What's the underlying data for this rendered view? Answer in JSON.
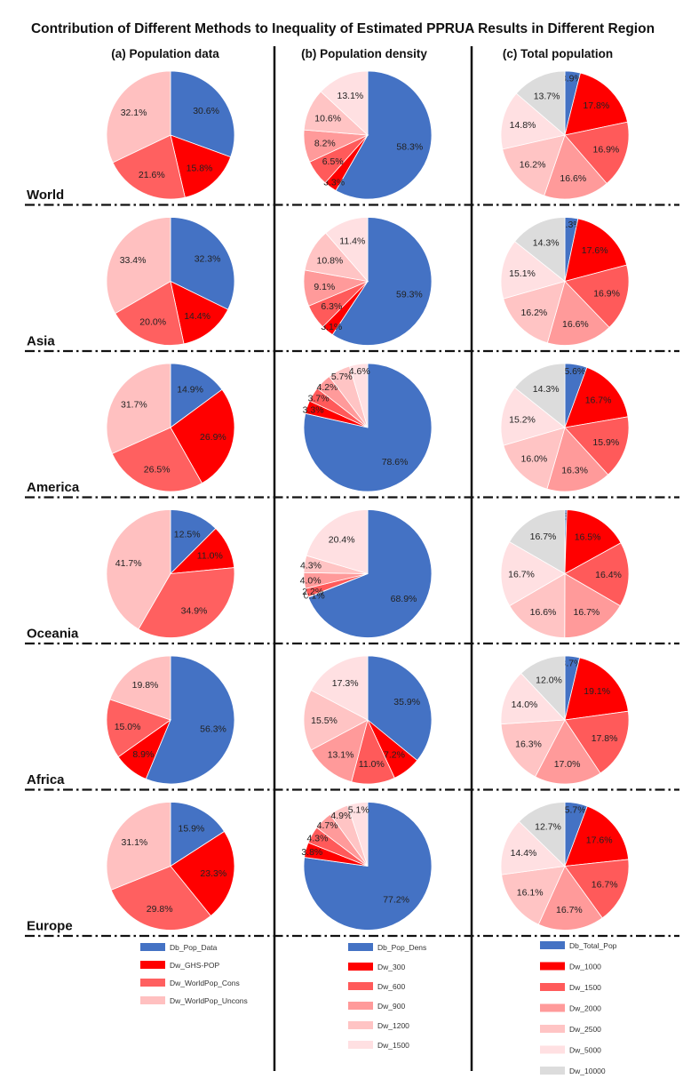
{
  "chart_data": {
    "type": "pie",
    "title": "Contribution of Different Methods to Inequality of Estimated PPRUA Results in Different Region",
    "columns": [
      {
        "key": "a",
        "title": "(a)  Population data",
        "legend": [
          {
            "name": "Db_Pop_Data",
            "color": "#4472c4"
          },
          {
            "name": "Dw_GHS-POP",
            "color": "#ff0000"
          },
          {
            "name": "Dw_WorldPop_Cons",
            "color": "#ff6060"
          },
          {
            "name": "Dw_WorldPop_Uncons",
            "color": "#ffc0c0"
          }
        ]
      },
      {
        "key": "b",
        "title": "(b)  Population density",
        "legend": [
          {
            "name": "Db_Pop_Dens",
            "color": "#4472c4"
          },
          {
            "name": "Dw_300",
            "color": "#ff0000"
          },
          {
            "name": "Dw_600",
            "color": "#ff5a5a"
          },
          {
            "name": "Dw_900",
            "color": "#ff9a9a"
          },
          {
            "name": "Dw_1200",
            "color": "#ffc4c4"
          },
          {
            "name": "Dw_1500",
            "color": "#ffe0e2"
          }
        ]
      },
      {
        "key": "c",
        "title": "(c)  Total population",
        "legend": [
          {
            "name": "Db_Total_Pop",
            "color": "#4472c4"
          },
          {
            "name": "Dw_1000",
            "color": "#ff0000"
          },
          {
            "name": "Dw_1500",
            "color": "#ff5a5a"
          },
          {
            "name": "Dw_2000",
            "color": "#ff9a9a"
          },
          {
            "name": "Dw_2500",
            "color": "#ffc4c4"
          },
          {
            "name": "Dw_5000",
            "color": "#ffe0e2"
          },
          {
            "name": "Dw_10000",
            "color": "#dcdcdc"
          }
        ]
      }
    ],
    "regions": [
      {
        "name": "World",
        "a": [
          30.6,
          15.8,
          21.6,
          32.1
        ],
        "b": [
          58.3,
          3.3,
          6.5,
          8.2,
          10.6,
          13.1
        ],
        "c": [
          3.9,
          17.8,
          16.9,
          16.6,
          16.2,
          14.8,
          13.7
        ]
      },
      {
        "name": "Asia",
        "a": [
          32.3,
          14.4,
          20.0,
          33.4
        ],
        "b": [
          59.3,
          3.1,
          6.3,
          9.1,
          10.8,
          11.4
        ],
        "c": [
          3.3,
          17.6,
          16.9,
          16.6,
          16.2,
          15.1,
          14.3
        ]
      },
      {
        "name": "America",
        "a": [
          14.9,
          26.9,
          26.5,
          31.7
        ],
        "b": [
          78.6,
          3.3,
          3.7,
          4.2,
          5.7,
          4.6
        ],
        "c": [
          5.6,
          16.7,
          15.9,
          16.3,
          16.0,
          15.2,
          14.3
        ]
      },
      {
        "name": "Oceania",
        "a": [
          12.5,
          11.0,
          34.9,
          41.7
        ],
        "b": [
          68.9,
          0.1,
          2.2,
          4.0,
          4.3,
          20.4
        ],
        "c": [
          0.5,
          16.5,
          16.4,
          16.7,
          16.6,
          16.7,
          16.7
        ]
      },
      {
        "name": "Africa",
        "a": [
          56.3,
          8.9,
          15.0,
          19.8
        ],
        "b": [
          35.9,
          7.2,
          11.0,
          13.1,
          15.5,
          17.3
        ],
        "c": [
          3.7,
          19.1,
          17.8,
          17.0,
          16.3,
          14.0,
          12.0
        ]
      },
      {
        "name": "Europe",
        "a": [
          15.9,
          23.3,
          29.8,
          31.1
        ],
        "b": [
          77.2,
          3.8,
          4.3,
          4.7,
          4.9,
          5.1
        ],
        "c": [
          5.7,
          17.6,
          16.7,
          16.7,
          16.1,
          14.4,
          12.7
        ]
      }
    ],
    "value_format": "{v}%",
    "start_angle": "12 o'clock",
    "direction": "clockwise"
  }
}
